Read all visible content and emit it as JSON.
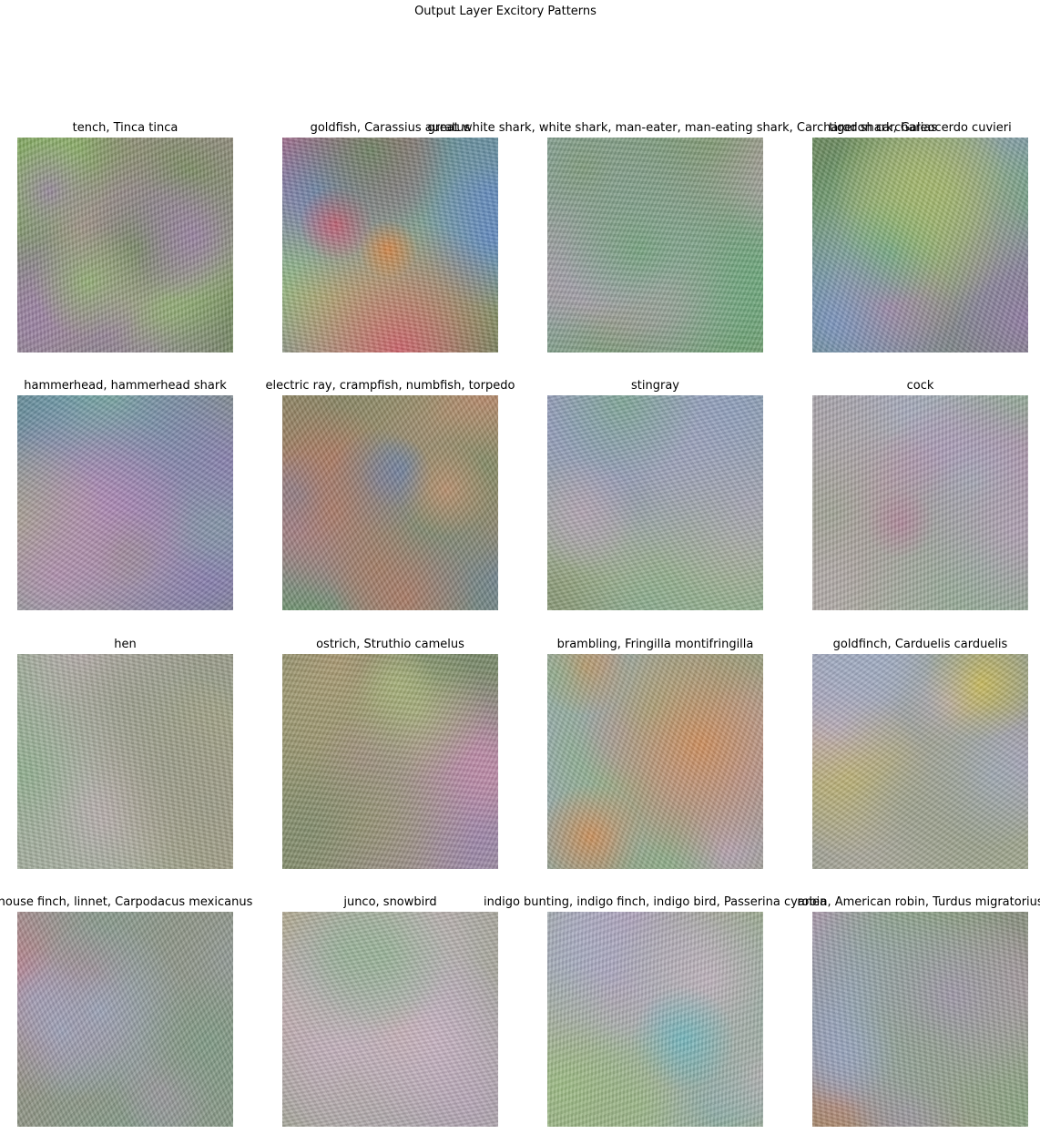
{
  "figure": {
    "title": "Output Layer Excitory Patterns"
  },
  "panels": [
    {
      "title": "tench, Tinca tinca",
      "palette": [
        "#6f8c56",
        "#9a7fa8",
        "#b9a55a",
        "#5f7fb4",
        "#8fb86a",
        "#c28bb6"
      ]
    },
    {
      "title": "goldfish, Carassius auratus",
      "palette": [
        "#5f8a5a",
        "#8a66b0",
        "#d9506a",
        "#e0803a",
        "#5e86c8",
        "#a4c46e"
      ]
    },
    {
      "title": "great white shark, white shark, man-eater, man-eating shark, Carcharodon carcharias",
      "palette": [
        "#7c9a6c",
        "#a48ab4",
        "#5e9a78",
        "#c2a0b8",
        "#8ca8c8",
        "#6aa87a"
      ]
    },
    {
      "title": "tiger shark, Galeocerdo cuvieri",
      "palette": [
        "#6a8a5e",
        "#9a78b2",
        "#58a880",
        "#c07a9a",
        "#7a96c8",
        "#a6b86a"
      ]
    },
    {
      "title": "hammerhead, hammerhead shark",
      "palette": [
        "#6e8e5c",
        "#8a78b4",
        "#a0b870",
        "#5c7ab8",
        "#b88ab6",
        "#7ab49a"
      ]
    },
    {
      "title": "electric ray, crampfish, numbfish, torpedo",
      "palette": [
        "#7a8a64",
        "#b07860",
        "#6a80a8",
        "#c49070",
        "#5e9a7a",
        "#a080a8"
      ]
    },
    {
      "title": "stingray",
      "palette": [
        "#8a9a78",
        "#a294b4",
        "#7aa88e",
        "#b8a4b4",
        "#8ca0c0",
        "#a8b888"
      ]
    },
    {
      "title": "cock",
      "palette": [
        "#9aa48e",
        "#b4a0b8",
        "#8cb098",
        "#c8b0c0",
        "#a0b0c8",
        "#d05aa0"
      ]
    },
    {
      "title": "hen",
      "palette": [
        "#9a9c8a",
        "#b09ab4",
        "#8ab08a",
        "#c4aeb8",
        "#a8a4c0",
        "#b0a080"
      ]
    },
    {
      "title": "ostrich, Struthio camelus",
      "palette": [
        "#7a8a6a",
        "#9c84ac",
        "#b09a72",
        "#6a86b0",
        "#a8b47a",
        "#c08aa8"
      ]
    },
    {
      "title": "brambling, Fringilla montifringilla",
      "palette": [
        "#94a084",
        "#aa98b8",
        "#8cb08a",
        "#c0a8bc",
        "#9cacc4",
        "#d88a4a"
      ]
    },
    {
      "title": "goldfinch, Carduelis carduelis",
      "palette": [
        "#98a08a",
        "#ae9cbc",
        "#a4b47a",
        "#c4acbc",
        "#a0acc4",
        "#d4c050"
      ]
    },
    {
      "title": "house finch, linnet, Carpodacus mexicanus",
      "palette": [
        "#8e9484",
        "#a898b4",
        "#c87a8a",
        "#7c9c86",
        "#98a8c0",
        "#d05868"
      ]
    },
    {
      "title": "junco, snowbird",
      "palette": [
        "#a0a494",
        "#b8a4bc",
        "#94b494",
        "#ccb4c4",
        "#a8b4c8",
        "#c4a890"
      ]
    },
    {
      "title": "indigo bunting, indigo finch, indigo bird, Passerina cyanea",
      "palette": [
        "#98a88a",
        "#b4a0bc",
        "#9cc080",
        "#c8b4c4",
        "#a4b4cc",
        "#6ab8c0"
      ]
    },
    {
      "title": "robin, American robin, Turdus migratorius",
      "palette": [
        "#8a9080",
        "#a494b0",
        "#86a87a",
        "#c09cb0",
        "#96a4be",
        "#c8805a"
      ]
    }
  ]
}
